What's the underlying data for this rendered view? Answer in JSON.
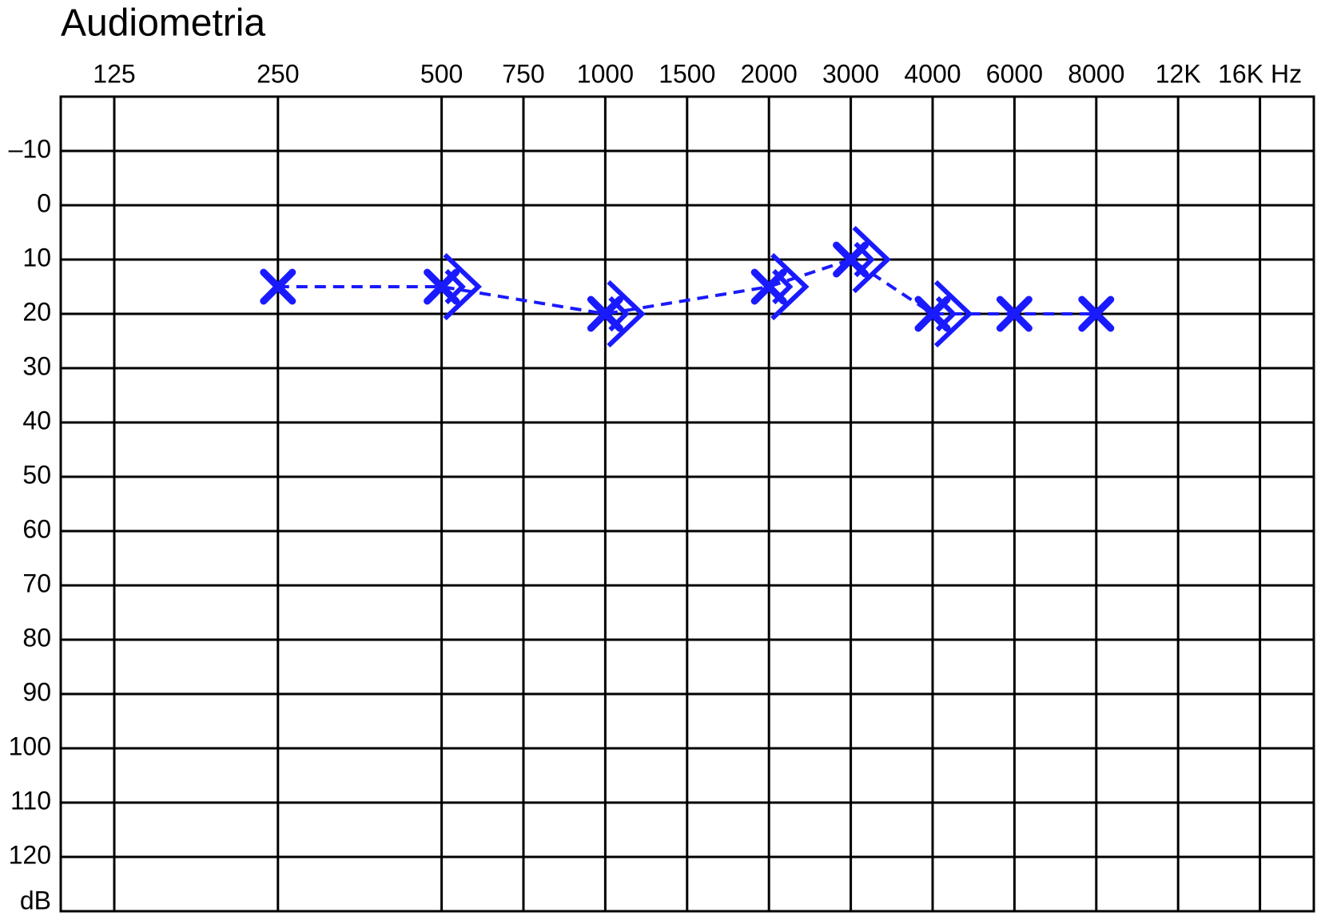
{
  "chart_data": {
    "type": "audiogram",
    "title": "Audiometria",
    "categories": [
      "125",
      null,
      "250",
      null,
      "500",
      "750",
      "1000",
      "1500",
      "2000",
      "3000",
      "4000",
      "6000",
      "8000",
      "12K",
      "16K Hz"
    ],
    "y_label": "dB",
    "ylim": [
      -20,
      130
    ],
    "y_reversed": true,
    "yticks": [
      {
        "value": -10,
        "label": "–10"
      },
      0,
      10,
      20,
      30,
      40,
      50,
      60,
      70,
      80,
      90,
      100,
      110,
      120
    ],
    "grid": true,
    "series": [
      {
        "marker": "x",
        "color": "#1a1aff",
        "line": "dashed",
        "x": [
          "250",
          "500",
          "1000",
          "2000",
          "3000",
          "4000",
          "6000",
          "8000"
        ],
        "values": [
          15,
          15,
          20,
          15,
          10,
          20,
          20,
          20
        ]
      },
      {
        "marker": ">",
        "color": "#1a1aff",
        "x": [
          "500",
          "1000",
          "2000",
          "3000",
          "4000"
        ],
        "values": [
          15,
          20,
          15,
          10,
          20
        ]
      }
    ]
  }
}
